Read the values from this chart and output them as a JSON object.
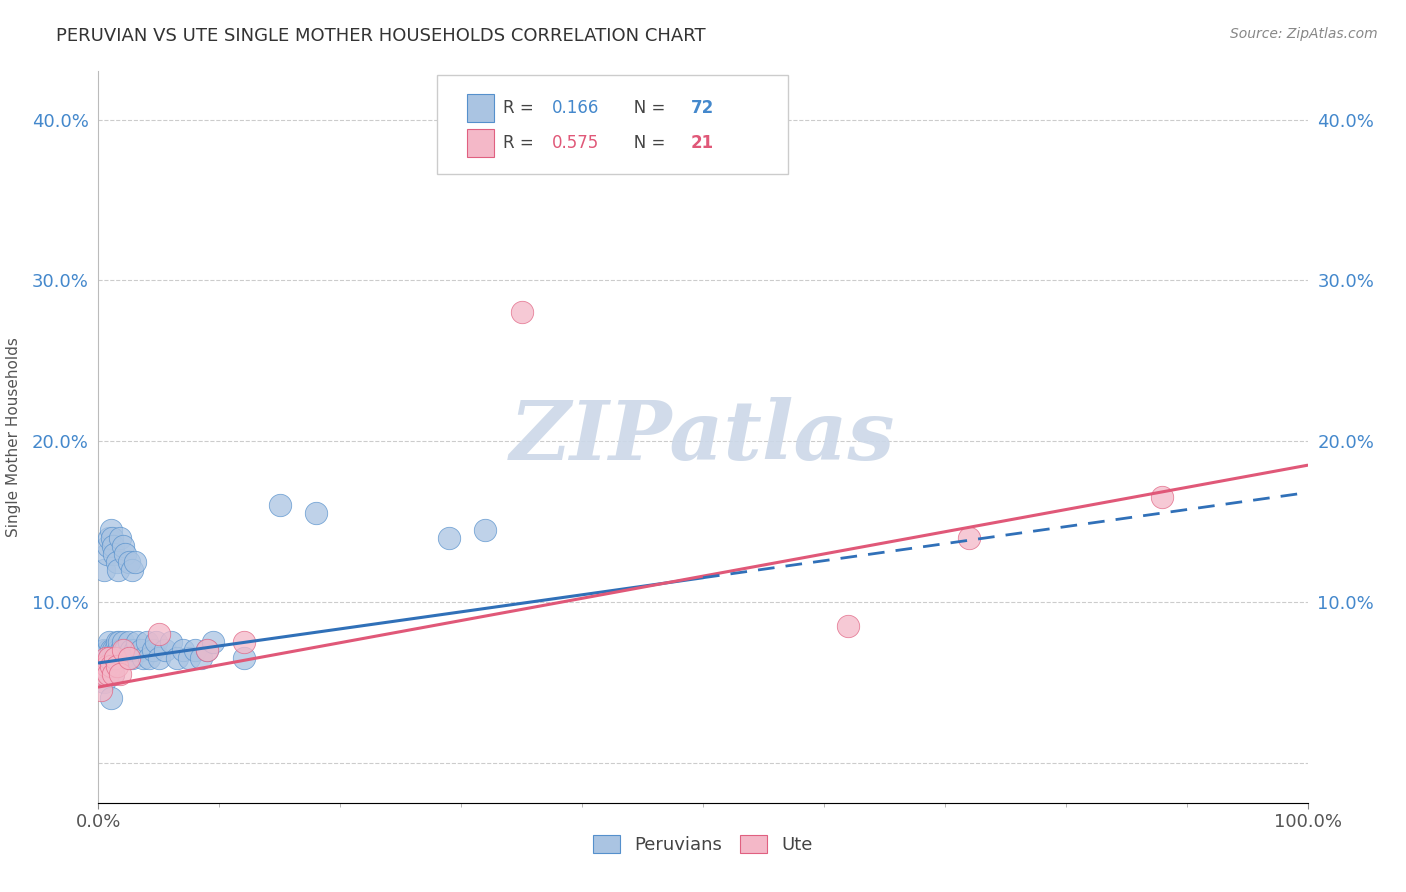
{
  "title": "PERUVIAN VS UTE SINGLE MOTHER HOUSEHOLDS CORRELATION CHART",
  "source": "Source: ZipAtlas.com",
  "ylabel": "Single Mother Households",
  "ytick_vals": [
    0.0,
    0.1,
    0.2,
    0.3,
    0.4
  ],
  "ytick_labels": [
    "",
    "10.0%",
    "20.0%",
    "30.0%",
    "40.0%"
  ],
  "xlim": [
    0.0,
    1.0
  ],
  "ylim": [
    -0.025,
    0.43
  ],
  "peruvian_color": "#aac4e2",
  "peruvian_edge": "#5590cc",
  "ute_color": "#f4b8c8",
  "ute_edge": "#e06080",
  "trendline_peruvian_color": "#3070b8",
  "trendline_ute_color": "#e05878",
  "watermark_color": "#ccd8e8",
  "grid_color": "#cccccc",
  "background_color": "#ffffff",
  "legend_box_color": "#cccccc",
  "peru_r": "0.166",
  "peru_n": "72",
  "ute_r": "0.575",
  "ute_n": "21",
  "peru_x": [
    0.002,
    0.003,
    0.004,
    0.005,
    0.005,
    0.006,
    0.007,
    0.007,
    0.008,
    0.008,
    0.009,
    0.009,
    0.01,
    0.01,
    0.011,
    0.012,
    0.012,
    0.013,
    0.014,
    0.015,
    0.015,
    0.016,
    0.017,
    0.018,
    0.019,
    0.02,
    0.02,
    0.022,
    0.024,
    0.025,
    0.027,
    0.028,
    0.03,
    0.032,
    0.035,
    0.037,
    0.04,
    0.042,
    0.045,
    0.048,
    0.05,
    0.055,
    0.06,
    0.065,
    0.07,
    0.075,
    0.08,
    0.085,
    0.09,
    0.095,
    0.005,
    0.007,
    0.008,
    0.009,
    0.01,
    0.011,
    0.012,
    0.013,
    0.015,
    0.016,
    0.018,
    0.02,
    0.022,
    0.025,
    0.028,
    0.03,
    0.15,
    0.18,
    0.29,
    0.32,
    0.01,
    0.12
  ],
  "peru_y": [
    0.055,
    0.06,
    0.065,
    0.07,
    0.05,
    0.06,
    0.065,
    0.055,
    0.07,
    0.06,
    0.065,
    0.075,
    0.07,
    0.06,
    0.065,
    0.07,
    0.055,
    0.065,
    0.07,
    0.075,
    0.065,
    0.07,
    0.075,
    0.065,
    0.07,
    0.065,
    0.075,
    0.07,
    0.065,
    0.075,
    0.07,
    0.065,
    0.07,
    0.075,
    0.07,
    0.065,
    0.075,
    0.065,
    0.07,
    0.075,
    0.065,
    0.07,
    0.075,
    0.065,
    0.07,
    0.065,
    0.07,
    0.065,
    0.07,
    0.075,
    0.12,
    0.13,
    0.135,
    0.14,
    0.145,
    0.14,
    0.135,
    0.13,
    0.125,
    0.12,
    0.14,
    0.135,
    0.13,
    0.125,
    0.12,
    0.125,
    0.16,
    0.155,
    0.14,
    0.145,
    0.04,
    0.065
  ],
  "ute_x": [
    0.002,
    0.003,
    0.005,
    0.006,
    0.007,
    0.008,
    0.009,
    0.01,
    0.012,
    0.014,
    0.015,
    0.018,
    0.02,
    0.025,
    0.05,
    0.09,
    0.12,
    0.35,
    0.62,
    0.72,
    0.88
  ],
  "ute_y": [
    0.045,
    0.06,
    0.055,
    0.065,
    0.06,
    0.055,
    0.065,
    0.06,
    0.055,
    0.065,
    0.06,
    0.055,
    0.07,
    0.065,
    0.08,
    0.07,
    0.075,
    0.28,
    0.085,
    0.14,
    0.165
  ],
  "peru_trend_x": [
    0.0,
    0.5
  ],
  "peru_trend_y": [
    0.062,
    0.115
  ],
  "ute_trend_x": [
    0.0,
    1.0
  ],
  "ute_trend_y": [
    0.047,
    0.185
  ]
}
